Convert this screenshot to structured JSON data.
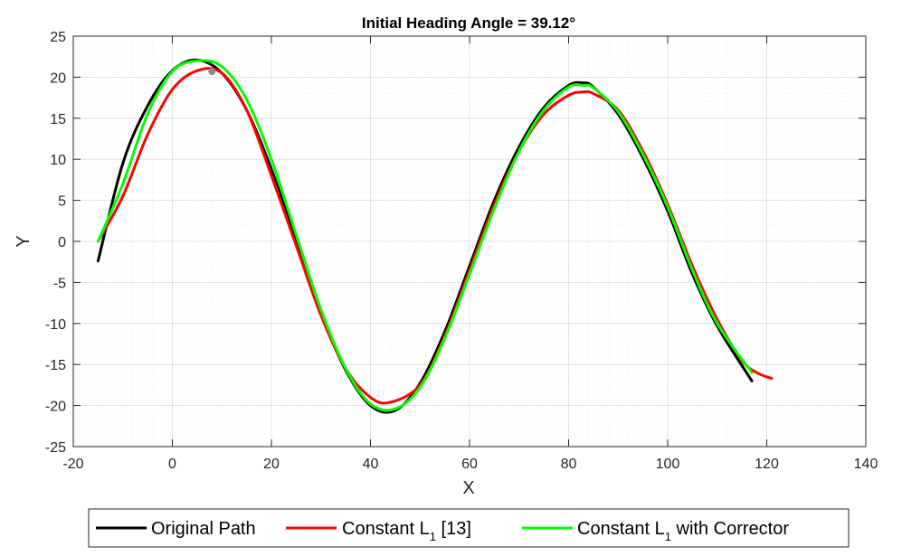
{
  "chart_data": {
    "type": "line",
    "title": "Initial Heading Angle = 39.12°",
    "xlabel": "X",
    "ylabel": "Y",
    "xlim": [
      -20,
      140
    ],
    "ylim": [
      -25,
      25
    ],
    "xticks": [
      -20,
      0,
      20,
      40,
      60,
      80,
      100,
      120,
      140
    ],
    "yticks": [
      -25,
      -20,
      -15,
      -10,
      -5,
      0,
      5,
      10,
      15,
      20,
      25
    ],
    "grid": true,
    "minor_grid": true,
    "legend_position": "bottom-outside",
    "series": [
      {
        "name": "Original Path",
        "color": "#000000",
        "x": [
          -15,
          -10,
          -5,
          0,
          5,
          10,
          15,
          20,
          25,
          30,
          35,
          40,
          45,
          50,
          55,
          60,
          65,
          70,
          75,
          80,
          83,
          85,
          90,
          95,
          100,
          105,
          110,
          117
        ],
        "y": [
          -2.4,
          9.5,
          16.5,
          20.8,
          22.1,
          20.5,
          16.0,
          8.8,
          0.0,
          -8.7,
          -15.7,
          -20.0,
          -20.6,
          -17.3,
          -11.0,
          -3.0,
          5.0,
          11.5,
          16.3,
          19.0,
          19.3,
          18.8,
          15.5,
          10.2,
          3.7,
          -4.0,
          -10.3,
          -17.0
        ]
      },
      {
        "name": "Constant L1 [13]",
        "color": "#ff0000",
        "x": [
          -15,
          -10,
          -5,
          0,
          5,
          10,
          15,
          20,
          25,
          30,
          35,
          40,
          44,
          50,
          55,
          60,
          65,
          70,
          75,
          80,
          83,
          85,
          90,
          95,
          100,
          105,
          110,
          115,
          118,
          121
        ],
        "y": [
          0.0,
          5.5,
          13.0,
          18.5,
          20.8,
          20.5,
          16.0,
          8.0,
          -0.5,
          -9.0,
          -15.5,
          -19.0,
          -19.6,
          -17.5,
          -11.5,
          -3.5,
          4.5,
          11.0,
          15.5,
          17.8,
          18.2,
          18.0,
          16.0,
          11.0,
          4.5,
          -3.0,
          -9.5,
          -14.5,
          -16.0,
          -16.7
        ]
      },
      {
        "name": "Constant L1 with Corrector",
        "color": "#00ff00",
        "x": [
          -15,
          -10,
          -5,
          0,
          5,
          10,
          15,
          20,
          25,
          30,
          35,
          40,
          45,
          50,
          55,
          60,
          65,
          70,
          75,
          80,
          83,
          85,
          90,
          95,
          100,
          105,
          110,
          117
        ],
        "y": [
          0.0,
          7.0,
          15.5,
          20.7,
          22.0,
          21.3,
          17.3,
          10.0,
          0.8,
          -8.3,
          -15.5,
          -19.8,
          -20.4,
          -17.8,
          -11.8,
          -4.0,
          4.0,
          11.0,
          16.0,
          18.8,
          19.0,
          18.7,
          15.8,
          10.6,
          4.2,
          -3.5,
          -10.0,
          -16.0
        ]
      }
    ],
    "marker": {
      "x": 8,
      "y": 20.7,
      "color": "#8c8c8c"
    }
  },
  "legend": {
    "original": "Original Path",
    "constant_prefix": "Constant L",
    "constant_sub": "1",
    "constant_suffix": " [13]",
    "corrector_prefix": "Constant L",
    "corrector_sub": "1",
    "corrector_suffix": " with Corrector"
  }
}
